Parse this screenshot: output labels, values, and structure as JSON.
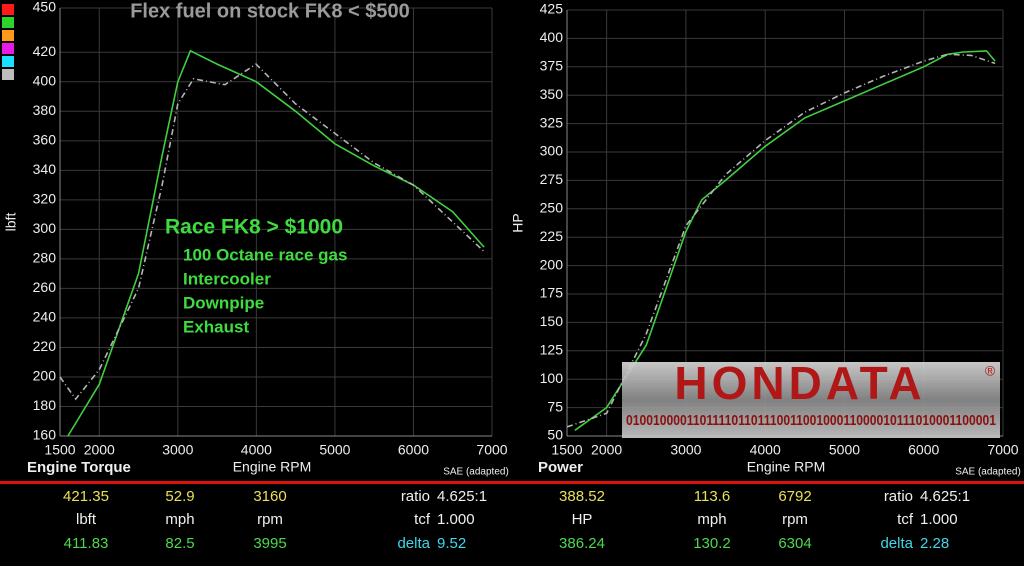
{
  "chart_data": [
    {
      "type": "line",
      "title": "Engine Torque",
      "xlabel": "Engine RPM",
      "ylabel": "lbft",
      "note": "SAE (adapted)",
      "xlim": [
        1500,
        7000
      ],
      "xticks": [
        1500,
        2000,
        3000,
        4000,
        5000,
        6000,
        7000
      ],
      "ylim": [
        160,
        450
      ],
      "yticks": [
        160,
        180,
        200,
        220,
        240,
        260,
        280,
        300,
        320,
        340,
        360,
        380,
        400,
        420,
        450
      ],
      "grid": true,
      "series": [
        {
          "color": "#3fcf3f",
          "dash": "solid",
          "x": [
            1600,
            2000,
            2500,
            2800,
            3000,
            3160,
            3500,
            4000,
            4500,
            5000,
            5500,
            6000,
            6500,
            6900
          ],
          "values": [
            160,
            195,
            270,
            350,
            400,
            421,
            412,
            400,
            380,
            358,
            343,
            330,
            312,
            288
          ]
        },
        {
          "color": "#b4b4b4",
          "dash": "dashed",
          "x": [
            1500,
            1700,
            2000,
            2500,
            2800,
            3000,
            3200,
            3600,
            3995,
            4500,
            5000,
            5500,
            6000,
            6500,
            6900
          ],
          "values": [
            200,
            185,
            205,
            260,
            330,
            385,
            402,
            398,
            412,
            385,
            365,
            345,
            330,
            305,
            285
          ]
        }
      ],
      "annotations": [
        {
          "text": "Flex fuel on stock FK8 < $500",
          "color": "#9a9a9a"
        },
        {
          "text": "Race FK8 > $1000",
          "color": "#3fdc3f"
        },
        {
          "text": "100 Octane race gas",
          "color": "#3fdc3f"
        },
        {
          "text": "Intercooler",
          "color": "#3fdc3f"
        },
        {
          "text": "Downpipe",
          "color": "#3fdc3f"
        },
        {
          "text": "Exhaust",
          "color": "#3fdc3f"
        }
      ]
    },
    {
      "type": "line",
      "title": "Power",
      "xlabel": "Engine RPM",
      "ylabel": "HP",
      "note": "SAE (adapted)",
      "xlim": [
        1500,
        7000
      ],
      "xticks": [
        1500,
        2000,
        3000,
        4000,
        5000,
        6000,
        7000
      ],
      "ylim": [
        50,
        425
      ],
      "yticks": [
        50,
        75,
        100,
        125,
        150,
        175,
        200,
        225,
        250,
        275,
        300,
        325,
        350,
        375,
        400,
        425
      ],
      "grid": true,
      "series": [
        {
          "color": "#3fcf3f",
          "dash": "solid",
          "x": [
            1600,
            2000,
            2500,
            3000,
            3200,
            3500,
            4000,
            4500,
            5000,
            5500,
            6000,
            6304,
            6500,
            6792,
            6900
          ],
          "values": [
            55,
            75,
            130,
            230,
            258,
            275,
            305,
            330,
            345,
            360,
            375,
            386,
            388,
            389,
            380
          ]
        },
        {
          "color": "#b4b4b4",
          "dash": "dashed",
          "x": [
            1500,
            2000,
            2500,
            3000,
            3500,
            4000,
            4500,
            5000,
            5500,
            6000,
            6300,
            6600,
            6900
          ],
          "values": [
            58,
            70,
            140,
            235,
            280,
            310,
            335,
            352,
            367,
            380,
            386,
            385,
            378
          ]
        }
      ],
      "annotations": []
    }
  ],
  "logo": {
    "name": "HONDATA",
    "mark": "®",
    "binary": "01001000011011110110111001100100011000010111010001100001"
  },
  "readouts": [
    {
      "rows": [
        [
          "421.35",
          "52.9",
          "3160",
          "ratio",
          "4.625:1"
        ],
        [
          "lbft",
          "mph",
          "rpm",
          "tcf",
          "1.000"
        ],
        [
          "411.83",
          "82.5",
          "3995",
          "delta",
          "9.52"
        ]
      ]
    },
    {
      "rows": [
        [
          "388.52",
          "113.6",
          "6792",
          "ratio",
          "4.625:1"
        ],
        [
          "HP",
          "mph",
          "rpm",
          "tcf",
          "1.000"
        ],
        [
          "386.24",
          "130.2",
          "6304",
          "delta",
          "2.28"
        ]
      ]
    }
  ]
}
